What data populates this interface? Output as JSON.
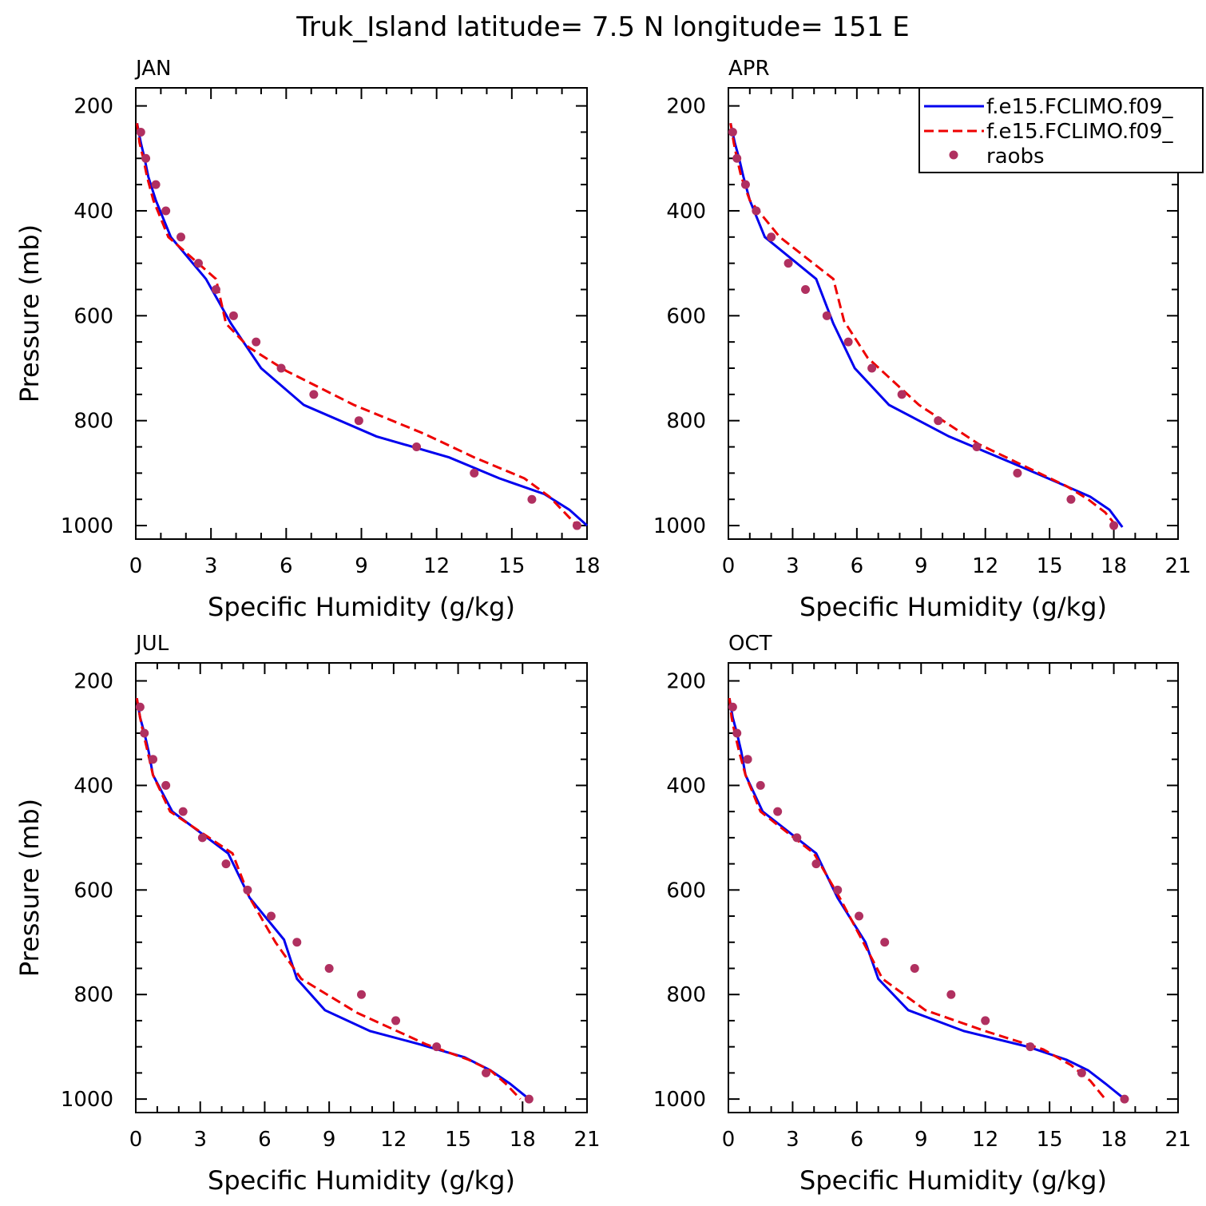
{
  "figure": {
    "title": "Truk_Island  latitude= 7.5 N longitude= 151 E"
  },
  "colors": {
    "model_a": "#0000ee",
    "model_b": "#ee0000",
    "raobs": "#b03060",
    "axes": "#000000"
  },
  "legend": {
    "entries": [
      {
        "label": "f.e15.FCLIMO.f09_",
        "style": "solid",
        "color": "#0000ee"
      },
      {
        "label": "f.e15.FCLIMO.f09_",
        "style": "dashed",
        "color": "#ee0000"
      },
      {
        "label": "raobs",
        "style": "marker",
        "color": "#b03060"
      }
    ],
    "placement": "top-right of APR panel"
  },
  "chart_data": [
    {
      "type": "line",
      "panel": "JAN",
      "xlabel": "Specific Humidity (g/kg)",
      "ylabel": "Pressure (mb)",
      "xlim": [
        0,
        18
      ],
      "ylim": [
        1000,
        200
      ],
      "xticks": [
        0,
        3,
        6,
        9,
        12,
        15,
        18
      ],
      "yticks": [
        200,
        400,
        600,
        800,
        1000
      ],
      "y_inverted": true,
      "series": [
        {
          "key": "model_a",
          "style": "solid",
          "x": [
            0.05,
            0.2,
            0.35,
            0.5,
            0.8,
            1.4,
            2.8,
            3.8,
            5.0,
            6.7,
            9.6,
            12.5,
            14.5,
            16.3,
            17.3,
            18.0
          ],
          "y": [
            233,
            270,
            300,
            335,
            380,
            450,
            530,
            615,
            700,
            770,
            830,
            870,
            910,
            940,
            970,
            1000
          ]
        },
        {
          "key": "model_b",
          "style": "dashed",
          "x": [
            0.05,
            0.15,
            0.3,
            0.45,
            0.7,
            1.3,
            3.2,
            3.6,
            4.5,
            6.0,
            8.7,
            11.5,
            13.5,
            15.5,
            16.5,
            17.0,
            17.6
          ],
          "y": [
            233,
            270,
            300,
            335,
            380,
            450,
            530,
            615,
            660,
            705,
            770,
            825,
            870,
            910,
            945,
            970,
            1000
          ]
        },
        {
          "key": "raobs",
          "style": "marker",
          "x": [
            0.2,
            0.4,
            0.8,
            1.2,
            1.8,
            2.5,
            3.2,
            3.9,
            4.8,
            5.8,
            7.1,
            8.9,
            11.2,
            13.5,
            15.8,
            17.6
          ],
          "y": [
            250,
            300,
            350,
            400,
            450,
            500,
            550,
            600,
            650,
            700,
            750,
            800,
            850,
            900,
            950,
            1000
          ]
        }
      ]
    },
    {
      "type": "line",
      "panel": "APR",
      "xlabel": "Specific Humidity (g/kg)",
      "ylabel": "",
      "xlim": [
        0,
        21
      ],
      "ylim": [
        1000,
        200
      ],
      "xticks": [
        0,
        3,
        6,
        9,
        12,
        15,
        18,
        21
      ],
      "yticks": [
        200,
        400,
        600,
        800,
        1000
      ],
      "y_inverted": true,
      "series": [
        {
          "key": "model_a",
          "style": "solid",
          "x": [
            0.1,
            0.3,
            0.5,
            0.7,
            1.0,
            1.7,
            4.1,
            4.9,
            5.9,
            7.5,
            10.3,
            13.5,
            15.5,
            16.9,
            17.8,
            18.4
          ],
          "y": [
            233,
            270,
            300,
            335,
            380,
            450,
            530,
            615,
            700,
            770,
            830,
            885,
            920,
            945,
            970,
            1003
          ]
        },
        {
          "key": "model_b",
          "style": "dashed",
          "x": [
            0.1,
            0.25,
            0.4,
            0.6,
            1.0,
            2.4,
            4.9,
            5.4,
            6.5,
            8.9,
            11.7,
            14.0,
            15.8,
            16.8,
            17.6,
            18.1
          ],
          "y": [
            233,
            270,
            300,
            335,
            380,
            450,
            530,
            610,
            680,
            770,
            845,
            890,
            925,
            950,
            975,
            1000
          ]
        },
        {
          "key": "raobs",
          "style": "marker",
          "x": [
            0.2,
            0.4,
            0.8,
            1.3,
            2.0,
            2.8,
            3.6,
            4.6,
            5.6,
            6.7,
            8.1,
            9.8,
            11.6,
            13.5,
            16.0,
            18.0
          ],
          "y": [
            250,
            300,
            350,
            400,
            450,
            500,
            550,
            600,
            650,
            700,
            750,
            800,
            850,
            900,
            950,
            1000
          ]
        }
      ]
    },
    {
      "type": "line",
      "panel": "JUL",
      "xlabel": "Specific Humidity (g/kg)",
      "ylabel": "Pressure (mb)",
      "xlim": [
        0,
        21
      ],
      "ylim": [
        1000,
        200
      ],
      "xticks": [
        0,
        3,
        6,
        9,
        12,
        15,
        18,
        21
      ],
      "yticks": [
        200,
        400,
        600,
        800,
        1000
      ],
      "y_inverted": true,
      "series": [
        {
          "key": "model_a",
          "style": "solid",
          "x": [
            0.05,
            0.2,
            0.4,
            0.6,
            0.8,
            1.7,
            4.3,
            5.3,
            6.9,
            7.5,
            8.8,
            10.9,
            13.2,
            15.3,
            16.5,
            17.4,
            18.3
          ],
          "y": [
            233,
            270,
            300,
            335,
            380,
            450,
            530,
            615,
            695,
            770,
            830,
            870,
            895,
            920,
            945,
            970,
            1000
          ]
        },
        {
          "key": "model_b",
          "style": "dashed",
          "x": [
            0.05,
            0.2,
            0.35,
            0.55,
            0.8,
            1.6,
            4.5,
            5.3,
            6.5,
            7.7,
            10.3,
            13.5,
            15.5,
            16.5,
            17.2,
            17.9
          ],
          "y": [
            233,
            270,
            300,
            335,
            380,
            450,
            530,
            615,
            700,
            770,
            835,
            895,
            925,
            945,
            970,
            1000
          ]
        },
        {
          "key": "raobs",
          "style": "marker",
          "x": [
            0.2,
            0.4,
            0.8,
            1.4,
            2.2,
            3.1,
            4.2,
            5.2,
            6.3,
            7.5,
            9.0,
            10.5,
            12.1,
            14.0,
            16.3,
            18.3
          ],
          "y": [
            250,
            300,
            350,
            400,
            450,
            500,
            550,
            600,
            650,
            700,
            750,
            800,
            850,
            900,
            950,
            1000
          ]
        }
      ]
    },
    {
      "type": "line",
      "panel": "OCT",
      "xlabel": "Specific Humidity (g/kg)",
      "ylabel": "",
      "xlim": [
        0,
        21
      ],
      "ylim": [
        1000,
        200
      ],
      "xticks": [
        0,
        3,
        6,
        9,
        12,
        15,
        18,
        21
      ],
      "yticks": [
        200,
        400,
        600,
        800,
        1000
      ],
      "y_inverted": true,
      "series": [
        {
          "key": "model_a",
          "style": "solid",
          "x": [
            0.05,
            0.2,
            0.4,
            0.6,
            0.8,
            1.6,
            4.1,
            5.1,
            6.4,
            7.0,
            8.4,
            11.0,
            14.0,
            15.8,
            16.8,
            17.6,
            18.5
          ],
          "y": [
            233,
            270,
            300,
            335,
            380,
            450,
            530,
            615,
            700,
            770,
            830,
            870,
            900,
            925,
            945,
            970,
            1000
          ]
        },
        {
          "key": "model_b",
          "style": "dashed",
          "x": [
            0.05,
            0.15,
            0.3,
            0.5,
            0.8,
            1.5,
            4.0,
            5.2,
            6.3,
            7.2,
            9.2,
            12.0,
            14.7,
            16.0,
            16.9,
            17.6
          ],
          "y": [
            233,
            270,
            300,
            335,
            380,
            450,
            530,
            615,
            700,
            770,
            830,
            870,
            905,
            935,
            965,
            1000
          ]
        },
        {
          "key": "raobs",
          "style": "marker",
          "x": [
            0.2,
            0.4,
            0.9,
            1.5,
            2.3,
            3.2,
            4.1,
            5.1,
            6.1,
            7.3,
            8.7,
            10.4,
            12.0,
            14.1,
            16.5,
            18.5
          ],
          "y": [
            250,
            300,
            350,
            400,
            450,
            500,
            550,
            600,
            650,
            700,
            750,
            800,
            850,
            900,
            950,
            1000
          ]
        }
      ]
    }
  ]
}
